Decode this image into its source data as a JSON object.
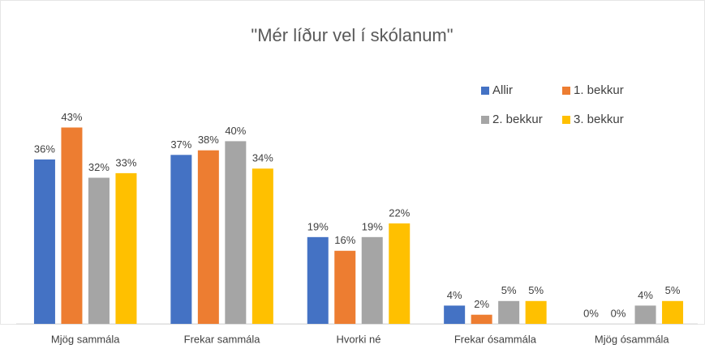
{
  "chart_data": {
    "type": "bar",
    "title": "\"Mér líður vel í skólanum\"",
    "categories": [
      "Mjög sammála",
      "Frekar sammála",
      "Hvorki né",
      "Frekar ósammála",
      "Mjög ósammála"
    ],
    "series": [
      {
        "name": "Allir",
        "color": "#4472c4",
        "values": [
          36,
          37,
          19,
          4,
          0
        ],
        "value_labels": [
          "36%",
          "37%",
          "19%",
          "4%",
          "0%"
        ]
      },
      {
        "name": "1. bekkur",
        "color": "#ed7d31",
        "values": [
          43,
          38,
          16,
          2,
          0
        ],
        "value_labels": [
          "43%",
          "38%",
          "16%",
          "2%",
          "0%"
        ]
      },
      {
        "name": "2. bekkur",
        "color": "#a5a5a5",
        "values": [
          32,
          40,
          19,
          5,
          4
        ],
        "value_labels": [
          "32%",
          "40%",
          "19%",
          "5%",
          "4%"
        ]
      },
      {
        "name": "3. bekkur",
        "color": "#ffc000",
        "values": [
          33,
          34,
          22,
          5,
          5
        ],
        "value_labels": [
          "33%",
          "34%",
          "22%",
          "5%",
          "5%"
        ]
      }
    ],
    "ylim": [
      0,
      50
    ],
    "legend": "top-right"
  }
}
